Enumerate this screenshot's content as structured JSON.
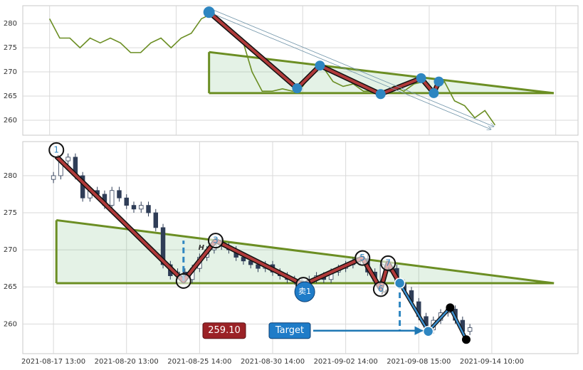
{
  "chart_data": [
    {
      "type": "line",
      "x": [
        0,
        2,
        4,
        6,
        8,
        10,
        12,
        14,
        16,
        18,
        20,
        22,
        24,
        26,
        28,
        30,
        32,
        34,
        36,
        38,
        40,
        42,
        44,
        46,
        48,
        50,
        52,
        54,
        56,
        58,
        60,
        62,
        64,
        66,
        68,
        70,
        72,
        74,
        76,
        78,
        80,
        82,
        84,
        86,
        88
      ],
      "values": [
        281,
        277,
        277,
        275,
        277,
        276,
        277,
        276,
        274,
        274,
        276,
        277,
        275,
        277,
        278,
        281,
        282,
        280,
        278,
        277,
        270,
        266,
        266,
        266.5,
        266,
        267,
        270,
        271,
        268,
        267,
        267.5,
        266,
        266,
        265.5,
        267,
        266,
        267.5,
        268,
        266,
        268,
        264,
        263,
        260.5,
        262,
        259
      ],
      "color": "#6b8e23",
      "xlim": [
        -5.3,
        104.4
      ],
      "xticks": [
        0,
        25,
        50,
        75,
        100
      ],
      "ylim": [
        256.9,
        283.7
      ],
      "yticks": [
        260,
        265,
        270,
        275,
        280
      ],
      "grid": true,
      "zigzag": {
        "x": [
          31.5,
          48.9,
          53.4,
          65.4,
          73.4,
          75.9,
          76.9
        ],
        "y": [
          282.35,
          266.6,
          271.3,
          265.4,
          268.7,
          265.6,
          268
        ]
      },
      "triangle": {
        "x": [
          31.5,
          99.6
        ],
        "upper": [
          274.1,
          265.6
        ],
        "lower": 265.6
      },
      "arrow": {
        "x": [
          31.5,
          87.2
        ],
        "y": [
          282.35,
          258.1
        ]
      }
    },
    {
      "type": "candlestick",
      "open": [
        279.5,
        280,
        282,
        282.5,
        280,
        277,
        278,
        277.5,
        276,
        278,
        277,
        276,
        275.5,
        276,
        275,
        273,
        268,
        266.5,
        267,
        266,
        267.5,
        269,
        270,
        271,
        270.5,
        270,
        269,
        268.5,
        268,
        267.5,
        268,
        267,
        266.5,
        266,
        265.8,
        265.3,
        266,
        266.5,
        266,
        267,
        267.5,
        268,
        268.5,
        268.8,
        267,
        265.8,
        268,
        267.5,
        265.5,
        264.5,
        263,
        261,
        259.2,
        260.5,
        261.5,
        262,
        260.5,
        259
      ],
      "high": [
        280.5,
        282.5,
        283,
        283,
        280.5,
        278.5,
        278.5,
        278,
        278.5,
        278.5,
        277.5,
        276.5,
        276.5,
        276.5,
        275.5,
        273.5,
        268.5,
        267.5,
        267.5,
        268,
        269.5,
        270.5,
        271.5,
        271.5,
        271,
        270.5,
        269.5,
        269,
        268.5,
        268.5,
        268.5,
        267.5,
        267,
        266.5,
        266.3,
        266.5,
        267,
        267,
        267.5,
        268,
        268.5,
        269,
        269.3,
        269.3,
        267.5,
        268.5,
        268.5,
        268,
        266,
        265,
        263.5,
        261.5,
        261,
        262,
        262.5,
        262.5,
        261,
        260
      ],
      "low": [
        279,
        279.5,
        281.5,
        279.5,
        276.5,
        276.5,
        277,
        275.5,
        275.5,
        276.5,
        275.5,
        275,
        275,
        274.5,
        272.5,
        267.5,
        266,
        266,
        265.5,
        265.5,
        267,
        268.5,
        269.5,
        270,
        269.5,
        268.5,
        268,
        267.5,
        267,
        267,
        266.5,
        266,
        265.5,
        265.3,
        264.8,
        264.8,
        265.5,
        265.5,
        265.5,
        266.5,
        267,
        267.5,
        268,
        266.5,
        265.3,
        265.3,
        267,
        265,
        264,
        262.5,
        260.5,
        258.7,
        258.7,
        260,
        261,
        260,
        258.5,
        258.5
      ],
      "close": [
        280,
        282,
        282.5,
        280,
        277,
        278,
        277.5,
        276,
        278,
        277,
        276,
        275.5,
        276,
        275,
        273,
        268,
        266.5,
        267,
        266,
        267.5,
        269,
        270,
        271,
        270.5,
        270,
        269,
        268.5,
        268,
        267.5,
        268,
        267,
        266.5,
        266,
        265.8,
        265.3,
        266,
        266.5,
        266,
        267,
        267.5,
        268,
        268.5,
        268.8,
        267,
        265.8,
        268,
        267.5,
        265.5,
        264.5,
        263,
        261,
        259.2,
        260.5,
        261.5,
        262,
        260.5,
        259,
        259.5
      ],
      "xlim": [
        -4.2,
        71.8
      ],
      "xticks": [
        {
          "value": 0,
          "label": "2021-08-17 13:00"
        },
        {
          "value": 10,
          "label": "2021-08-20 13:00"
        },
        {
          "value": 20,
          "label": "2021-08-25 14:00"
        },
        {
          "value": 30,
          "label": "2021-08-30 14:00"
        },
        {
          "value": 40,
          "label": "2021-09-02 14:00"
        },
        {
          "value": 50,
          "label": "2021-09-08 15:00"
        },
        {
          "value": 60,
          "label": "2021-09-14 10:00"
        }
      ],
      "ylim": [
        256,
        284.6
      ],
      "yticks": [
        260,
        265,
        270,
        275,
        280
      ],
      "grid": true,
      "zigzag": {
        "x": [
          0.4,
          17.8,
          22.2,
          34.2,
          42.3,
          44.8,
          45.8,
          47.4
        ],
        "y": [
          282.6,
          265.8,
          271.25,
          265.3,
          268.9,
          264.7,
          268.2,
          265.5
        ],
        "labels": [
          "1",
          null,
          "3",
          null,
          "5",
          "6",
          "7",
          null
        ]
      },
      "projection": {
        "x": [
          47.4,
          51.3,
          54.3,
          56.5
        ],
        "y": [
          265.5,
          259,
          262.2,
          257.9
        ]
      },
      "triangle": {
        "x": [
          0.4,
          68.5
        ],
        "upper": [
          274.0,
          265.5
        ],
        "lower": 265.5
      },
      "target": {
        "label": "Target",
        "value": 259.1,
        "value_label": "259.10"
      },
      "height_label": "H",
      "sell_label": "卖1"
    }
  ]
}
